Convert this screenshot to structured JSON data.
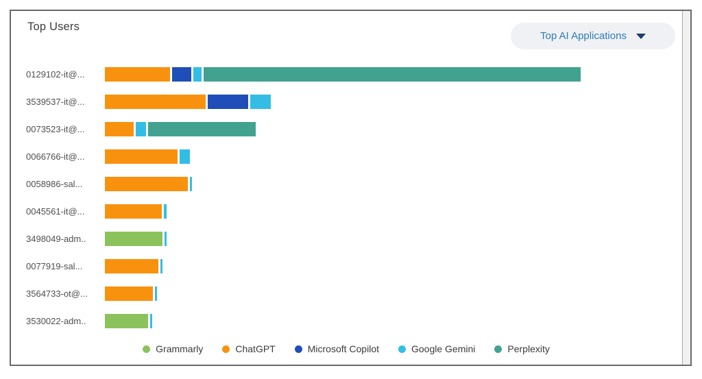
{
  "card": {
    "title": "Top Users",
    "dropdown": {
      "label": "Top AI Applications",
      "icon": "caret-down-icon"
    }
  },
  "colors": {
    "grammarly": "#8CC25C",
    "chatgpt": "#F8920E",
    "microsoft_copilot": "#1F4EB8",
    "google_gemini": "#33BDE5",
    "perplexity": "#41A28F",
    "dropdown_text": "#2e7cb8",
    "dropdown_bg": "#eff1f4",
    "card_border": "#696969"
  },
  "chart_data": {
    "type": "bar",
    "orientation": "horizontal",
    "stacked": true,
    "title": "Top Users",
    "xlabel": "",
    "ylabel": "",
    "xlim": [
      0,
      700
    ],
    "value_unit": "relative-activity",
    "grid": false,
    "legend_position": "bottom",
    "categories": [
      "0129102-it@...",
      "3539537-it@...",
      "0073523-it@...",
      "0066766-it@...",
      "0058986-sal...",
      "0045561-it@...",
      "3498049-adm..",
      "0077919-sal...",
      "3564733-ot@...",
      "3530022-adm.."
    ],
    "series": [
      {
        "name": "Grammarly",
        "color": "#8CC25C",
        "values": [
          0,
          0,
          0,
          0,
          0,
          0,
          84,
          0,
          0,
          63
        ]
      },
      {
        "name": "ChatGPT",
        "color": "#F8920E",
        "values": [
          95,
          147,
          42,
          106,
          121,
          83,
          0,
          78,
          70,
          0
        ]
      },
      {
        "name": "Microsoft Copilot",
        "color": "#1F4EB8",
        "values": [
          28,
          59,
          0,
          0,
          0,
          0,
          0,
          0,
          0,
          0
        ]
      },
      {
        "name": "Google Gemini",
        "color": "#33BDE5",
        "values": [
          12,
          30,
          15,
          15,
          3,
          4,
          3,
          3,
          3,
          3
        ]
      },
      {
        "name": "Perplexity",
        "color": "#41A28F",
        "values": [
          550,
          0,
          157,
          0,
          0,
          0,
          0,
          0,
          0,
          0
        ]
      }
    ]
  }
}
